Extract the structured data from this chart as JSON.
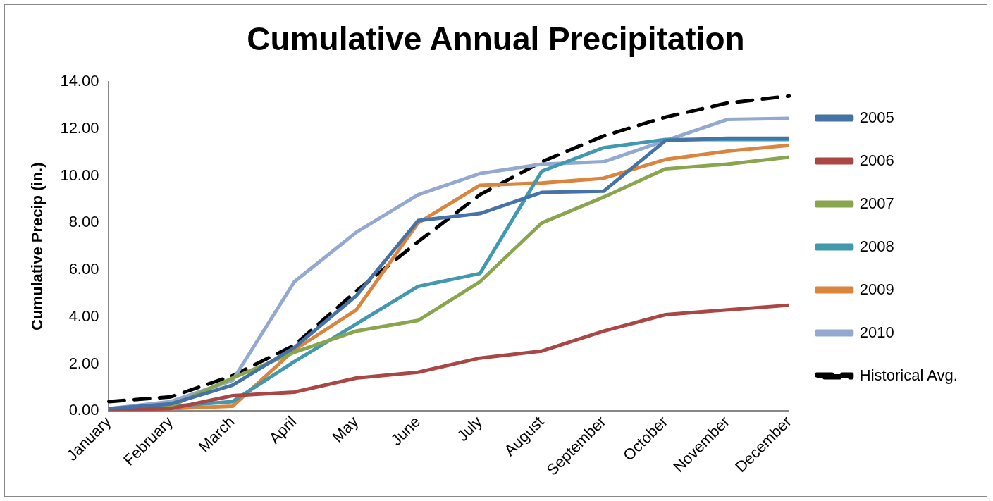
{
  "chart_data": {
    "type": "line",
    "title": "Cumulative Annual Precipitation",
    "ylabel": "Cumulative Precip (in.)",
    "categories": [
      "January",
      "February",
      "March",
      "April",
      "May",
      "June",
      "July",
      "August",
      "September",
      "October",
      "November",
      "December"
    ],
    "series": [
      {
        "name": "2005",
        "color": "#4572a7",
        "values": [
          0.1,
          0.3,
          1.1,
          2.7,
          4.9,
          8.1,
          8.4,
          9.3,
          9.35,
          11.5,
          11.6,
          11.6
        ]
      },
      {
        "name": "2006",
        "color": "#aa4643",
        "values": [
          0.05,
          0.1,
          0.65,
          0.8,
          1.4,
          1.65,
          2.25,
          2.55,
          3.4,
          4.1,
          4.3,
          4.5
        ]
      },
      {
        "name": "2007",
        "color": "#89a54e",
        "values": [
          0.1,
          0.2,
          1.4,
          2.5,
          3.4,
          3.85,
          5.5,
          8.0,
          9.1,
          10.3,
          10.5,
          10.8
        ]
      },
      {
        "name": "2008",
        "color": "#4198af",
        "values": [
          0.05,
          0.2,
          0.4,
          2.1,
          3.7,
          5.3,
          5.85,
          10.2,
          11.2,
          11.55,
          11.55,
          11.55
        ]
      },
      {
        "name": "2009",
        "color": "#db843d",
        "values": [
          0.05,
          0.1,
          0.2,
          2.6,
          4.3,
          8.0,
          9.6,
          9.7,
          9.9,
          10.7,
          11.05,
          11.3
        ]
      },
      {
        "name": "2010",
        "color": "#93a9cf",
        "values": [
          0.1,
          0.4,
          1.3,
          5.5,
          7.6,
          9.2,
          10.1,
          10.5,
          10.6,
          11.5,
          12.4,
          12.45
        ]
      },
      {
        "name": "Historical Avg.",
        "color": "#000000",
        "line_style": "dashed",
        "values": [
          0.4,
          0.6,
          1.5,
          2.8,
          5.1,
          7.2,
          9.2,
          10.6,
          11.7,
          12.5,
          13.1,
          13.4
        ]
      }
    ],
    "ylim": [
      0,
      14
    ],
    "yticks": [
      {
        "value": 0,
        "label": "0.00"
      },
      {
        "value": 2,
        "label": "2.00"
      },
      {
        "value": 4,
        "label": "4.00"
      },
      {
        "value": 6,
        "label": "6.00"
      },
      {
        "value": 8,
        "label": "8.00"
      },
      {
        "value": 10,
        "label": "10.00"
      },
      {
        "value": 12,
        "label": "12.00"
      },
      {
        "value": 14,
        "label": "14.00"
      }
    ],
    "grid": false,
    "legend": "right",
    "marker": "none",
    "line_style": "solid"
  }
}
